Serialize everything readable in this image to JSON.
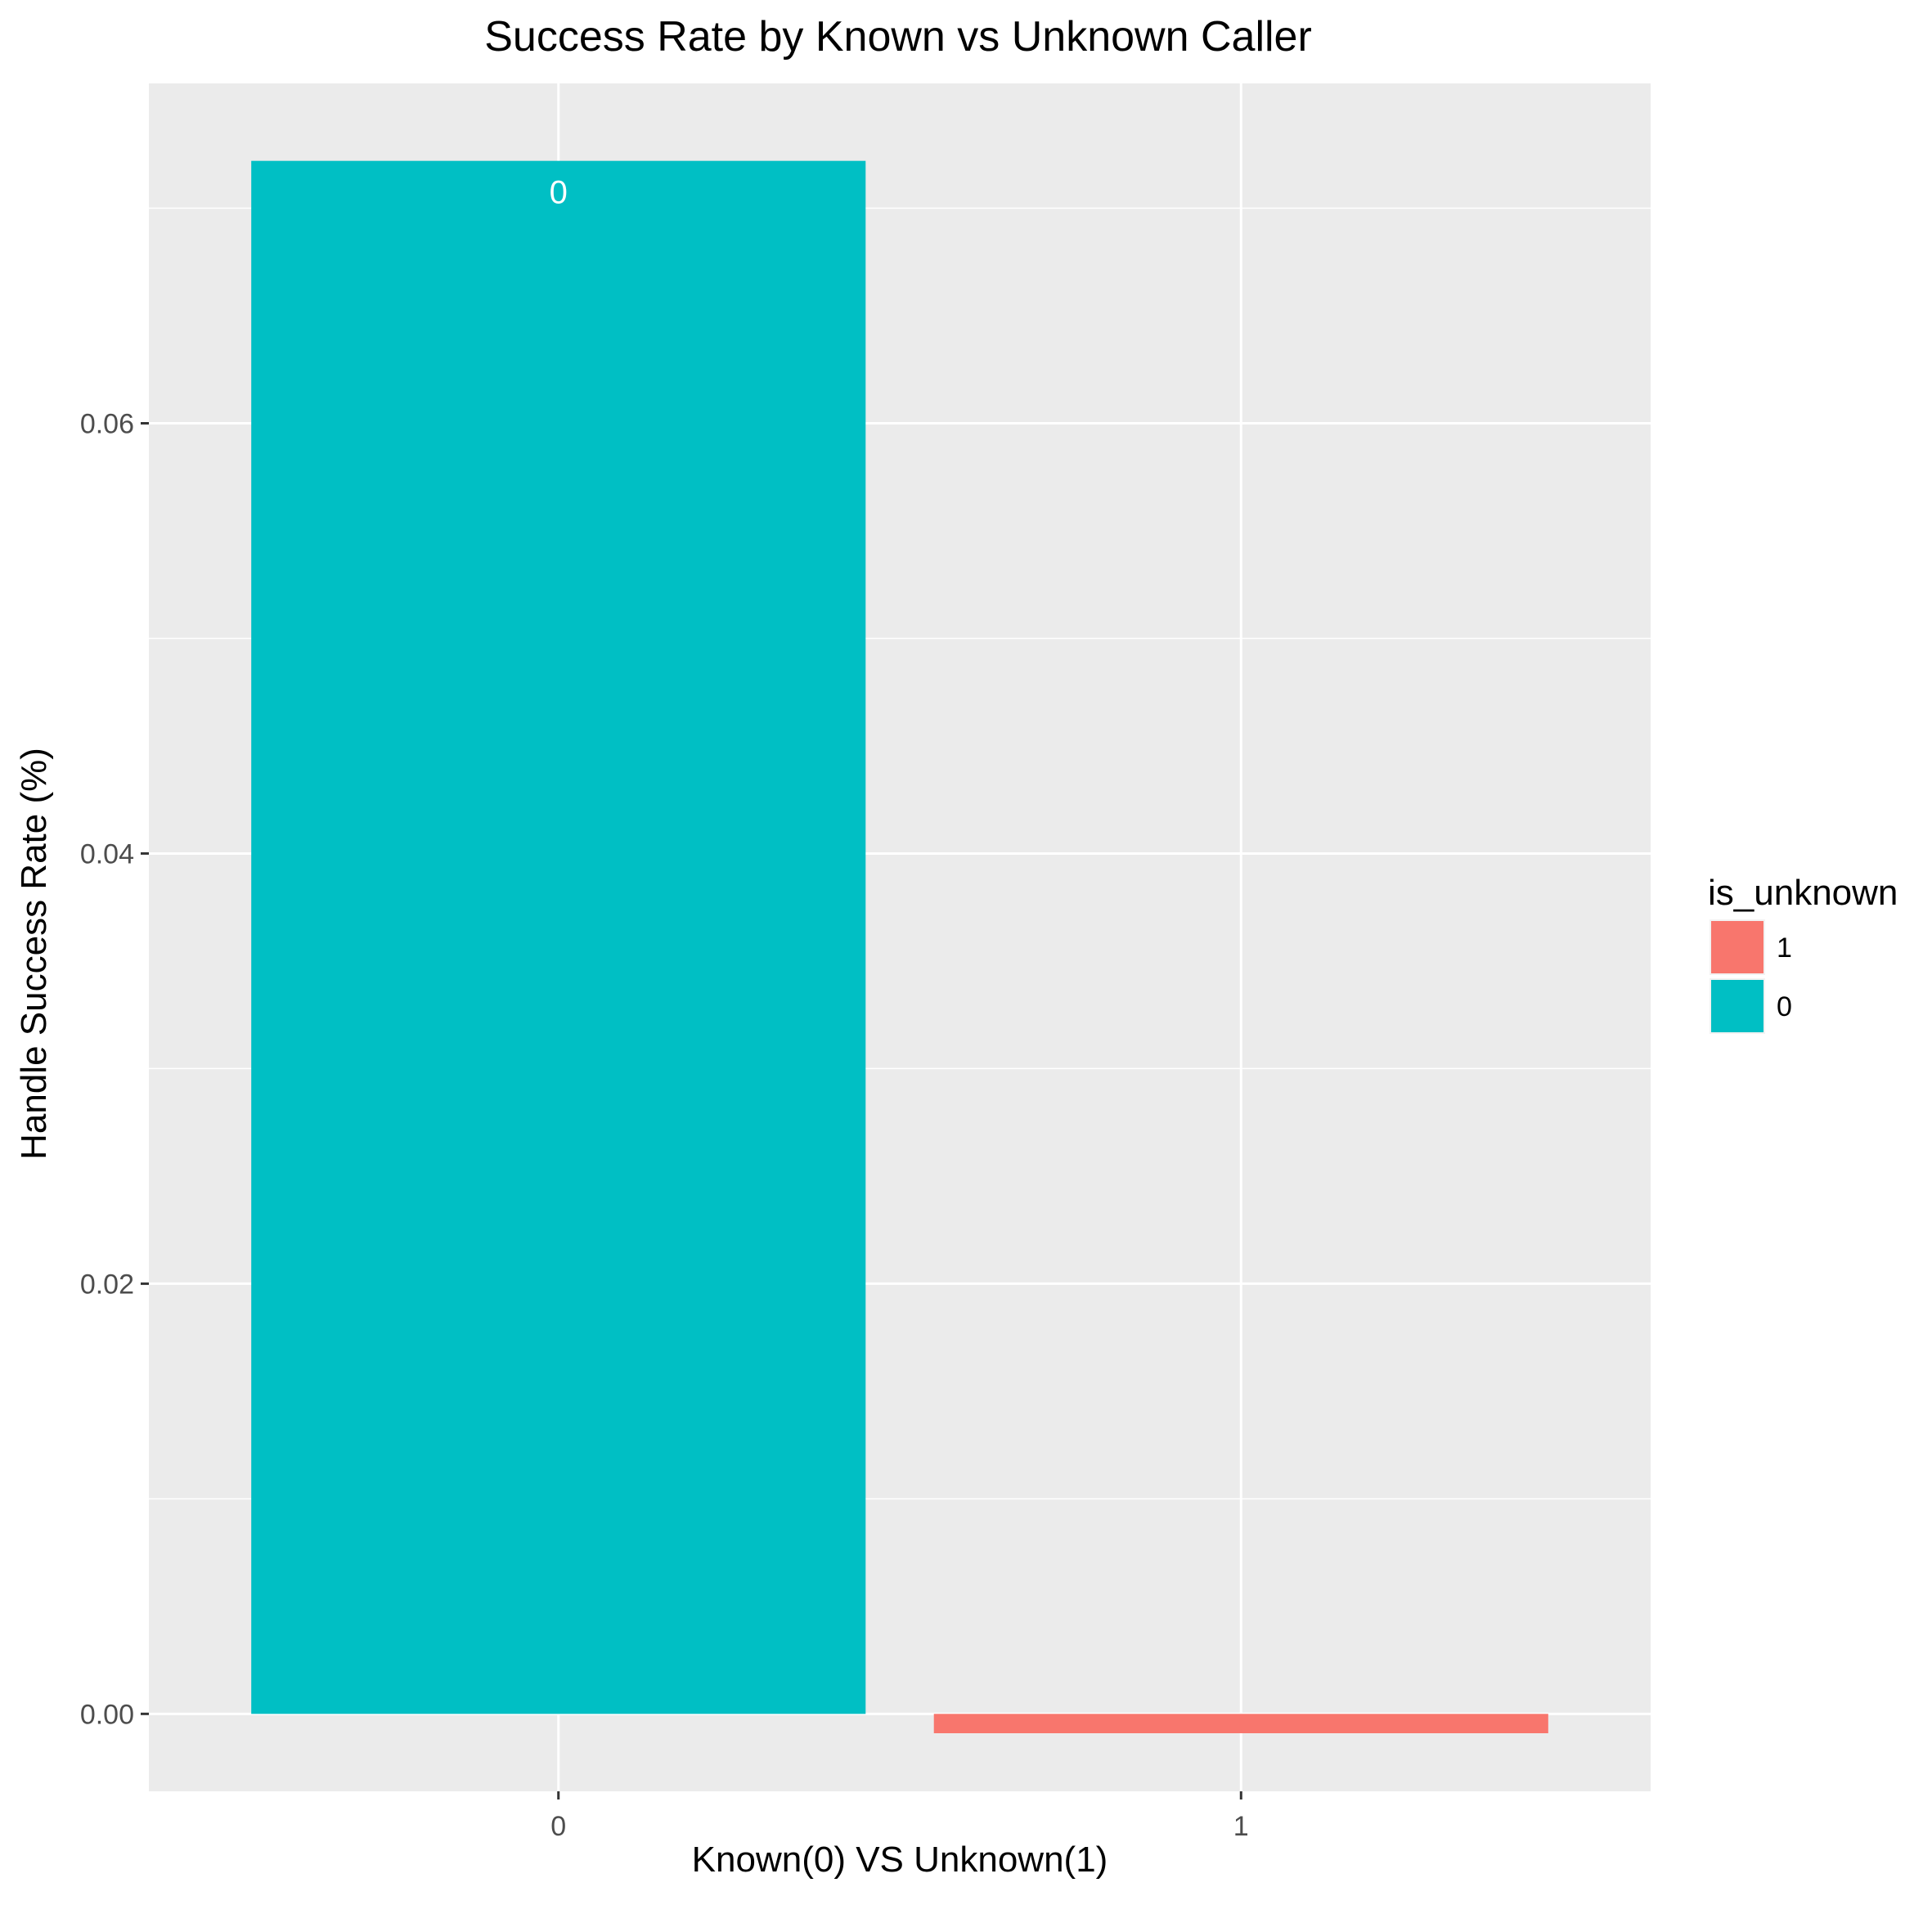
{
  "chart_data": {
    "type": "bar",
    "title": "Success Rate by Known vs Unknown Caller",
    "xlabel": "Known(0) VS Unknown(1)",
    "ylabel": "Handle Success Rate (%)",
    "categories": [
      "0",
      "1"
    ],
    "series": [
      {
        "name": "0",
        "category": "0",
        "value": 0.0722,
        "label": "0",
        "color": "#00BFC4"
      },
      {
        "name": "1",
        "category": "1",
        "value": -0.0009,
        "label": "",
        "color": "#F8766D"
      }
    ],
    "ylim": [
      -0.0036,
      0.0758
    ],
    "y_ticks": [
      0.0,
      0.02,
      0.04,
      0.06
    ],
    "y_tick_labels": [
      "0.00",
      "0.02",
      "0.04",
      "0.06"
    ],
    "grid": true,
    "panel_background": "#EBEBEB",
    "legend": {
      "title": "is_unknown",
      "placement": "right",
      "items": [
        {
          "label": "1",
          "color": "#F8766D"
        },
        {
          "label": "0",
          "color": "#00BFC4"
        }
      ]
    }
  }
}
